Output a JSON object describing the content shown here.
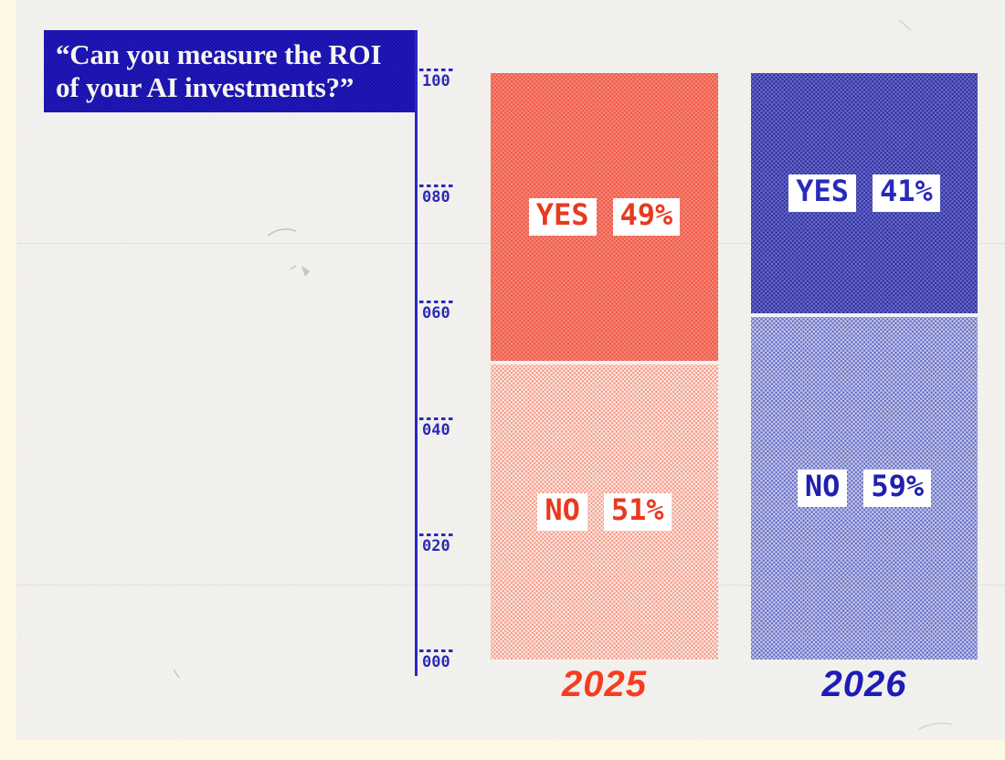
{
  "banner": {
    "line1": "“Can you measure the ROI",
    "line2": "of your AI investments?”",
    "bg_color": "#2a23cb",
    "dot_color": "#150da0",
    "text_color": "#f6f5ee"
  },
  "axis": {
    "line_color": "#2a28c2",
    "tick_color": "#2b2ab6"
  },
  "page": {
    "frame_color": "#fdf8e3",
    "paper_color": "#f4f3f0"
  },
  "chart_data": {
    "type": "bar",
    "stacked": true,
    "title": "“Can you measure the ROI of your AI investments?”",
    "categories": [
      "2025",
      "2026"
    ],
    "series": [
      {
        "name": "YES",
        "values": [
          49,
          41
        ]
      },
      {
        "name": "NO",
        "values": [
          51,
          59
        ]
      }
    ],
    "ylim": [
      0,
      100
    ],
    "legend": "none",
    "grid": "dashed tick marks on left axis only",
    "yticks": [
      {
        "value": 100,
        "label": "100"
      },
      {
        "value": 80,
        "label": "080"
      },
      {
        "value": 60,
        "label": "060"
      },
      {
        "value": 40,
        "label": "040"
      },
      {
        "value": 20,
        "label": "020"
      },
      {
        "value": 0,
        "label": "000"
      }
    ],
    "bars": [
      {
        "year": "2025",
        "year_color": "#f53d20",
        "segments": [
          {
            "name": "YES",
            "pct": 49,
            "value_label": "49%",
            "base_color": "#f78a7c",
            "dot_color": "#ed5340",
            "text_color": "#e73a1f"
          },
          {
            "name": "NO",
            "pct": 51,
            "value_label": "51%",
            "base_color": "#fdede9",
            "dot_color": "#f4937f",
            "text_color": "#e73a1f"
          }
        ]
      },
      {
        "year": "2026",
        "year_color": "#1d1cb6",
        "segments": [
          {
            "name": "YES",
            "pct": 41,
            "value_label": "41%",
            "base_color": "#6a6fc7",
            "dot_color": "#2b2aa0",
            "text_color": "#2a2ab8"
          },
          {
            "name": "NO",
            "pct": 59,
            "value_label": "59%",
            "base_color": "#c8ccea",
            "dot_color": "#5f66c3",
            "text_color": "#2020ae"
          }
        ]
      }
    ]
  }
}
